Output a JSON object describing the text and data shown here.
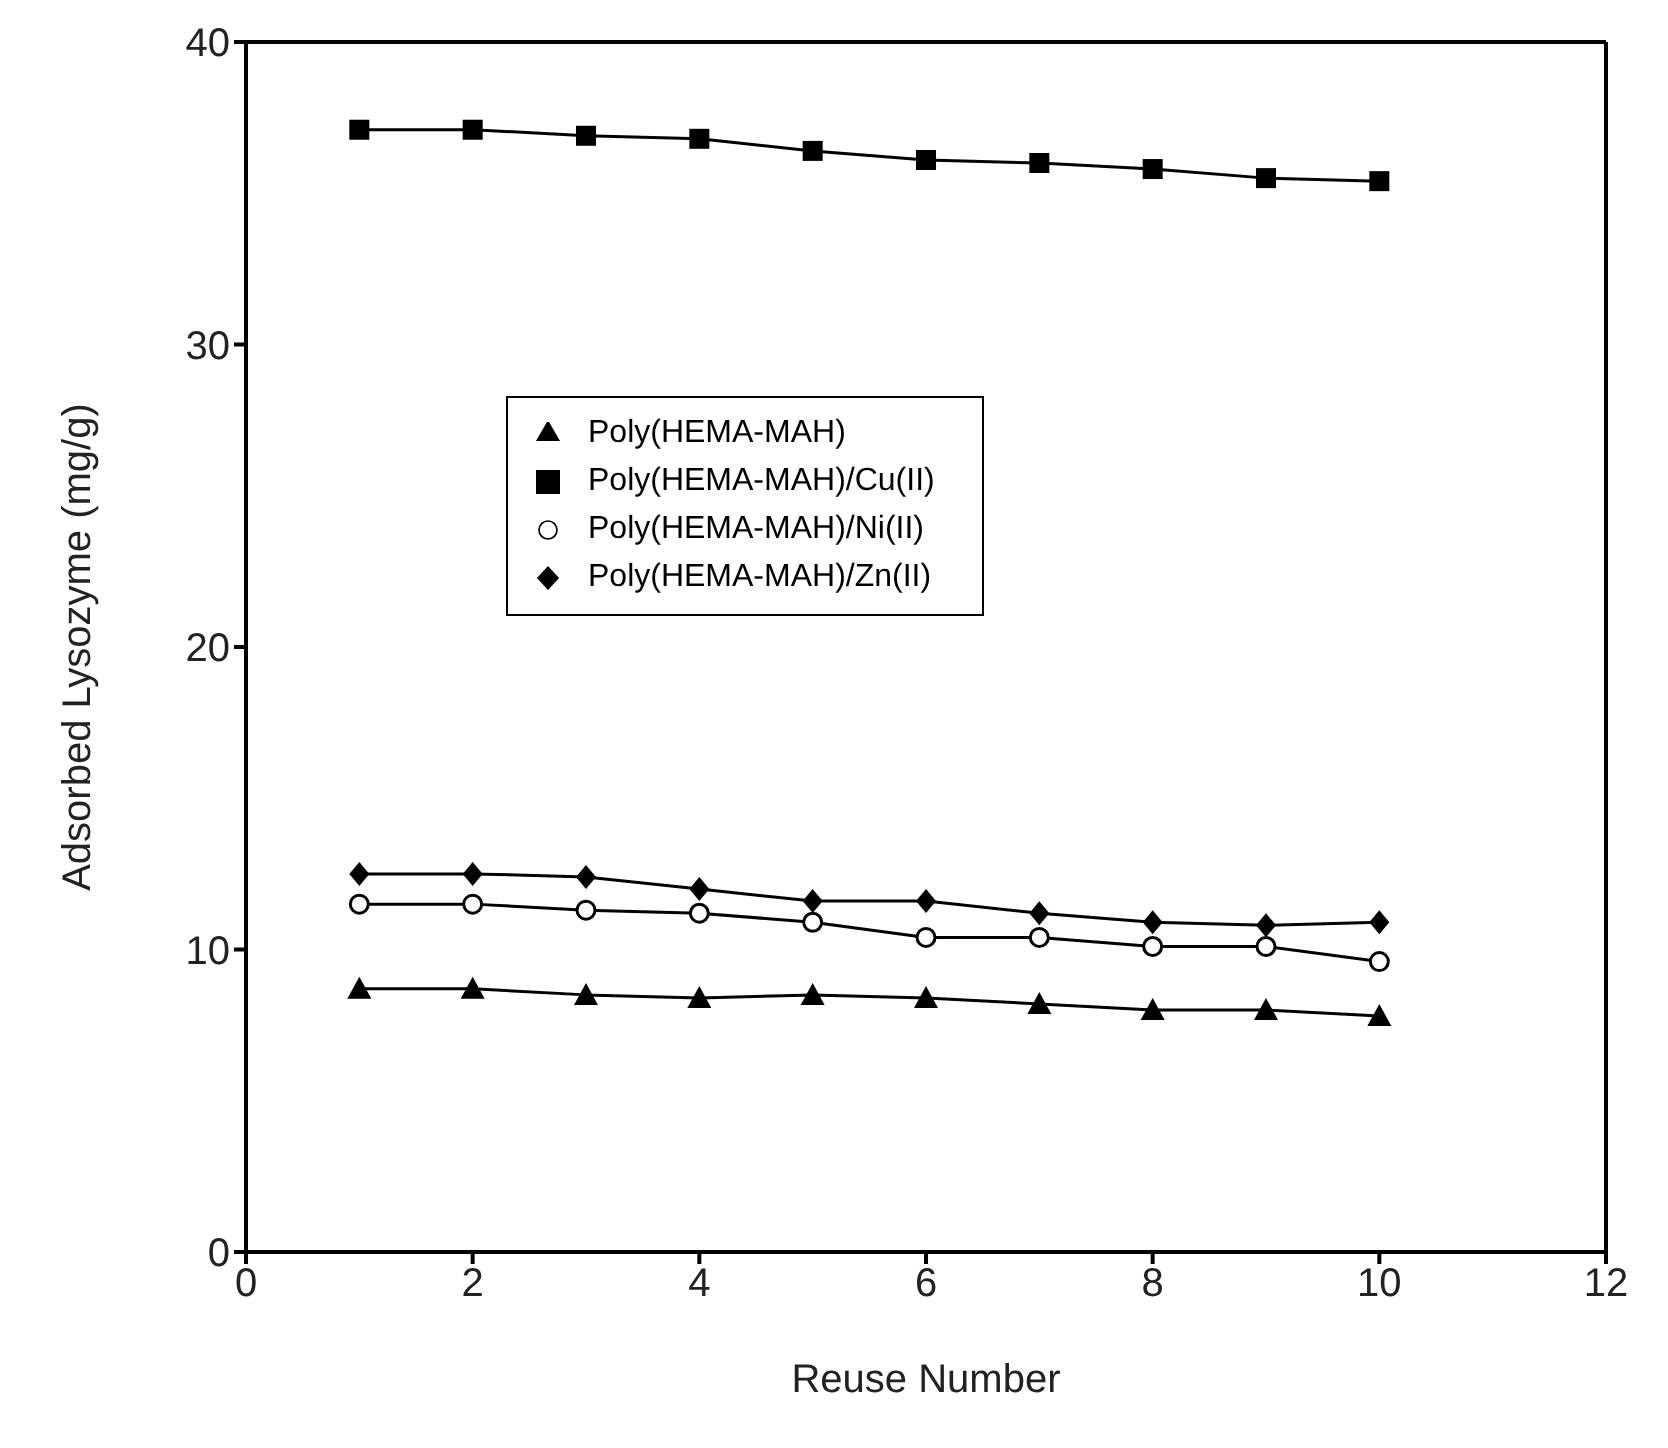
{
  "chart_data": {
    "type": "line",
    "xlabel": "Reuse Number",
    "ylabel": "Adsorbed Lysozyme (mg/g)",
    "x": [
      1,
      2,
      3,
      4,
      5,
      6,
      7,
      8,
      9,
      10
    ],
    "xlim": [
      0,
      12
    ],
    "xticks": [
      0,
      2,
      4,
      6,
      8,
      10,
      12
    ],
    "ylim": [
      0,
      40
    ],
    "yticks": [
      0,
      10,
      20,
      30,
      40
    ],
    "grid": false,
    "legend": "center",
    "line_style": "solid",
    "series": [
      {
        "name": "Poly(HEMA-MAH)",
        "color": "#000000",
        "marker": "triangle",
        "values": [
          8.7,
          8.7,
          8.5,
          8.4,
          8.5,
          8.4,
          8.2,
          8.0,
          8.0,
          7.8
        ]
      },
      {
        "name": "Poly(HEMA-MAH)/Cu(II)",
        "color": "#000000",
        "marker": "square",
        "values": [
          37.1,
          37.1,
          36.9,
          36.8,
          36.4,
          36.1,
          36.0,
          35.8,
          35.5,
          35.4
        ]
      },
      {
        "name": "Poly(HEMA-MAH)/Ni(II)",
        "color": "#000000",
        "marker": "circle",
        "values": [
          11.5,
          11.5,
          11.3,
          11.2,
          10.9,
          10.4,
          10.4,
          10.1,
          10.1,
          9.6
        ]
      },
      {
        "name": "Poly(HEMA-MAH)/Zn(II)",
        "color": "#000000",
        "marker": "diamond",
        "values": [
          12.5,
          12.5,
          12.4,
          12.0,
          11.6,
          11.6,
          11.2,
          10.9,
          10.8,
          10.9
        ]
      }
    ]
  }
}
